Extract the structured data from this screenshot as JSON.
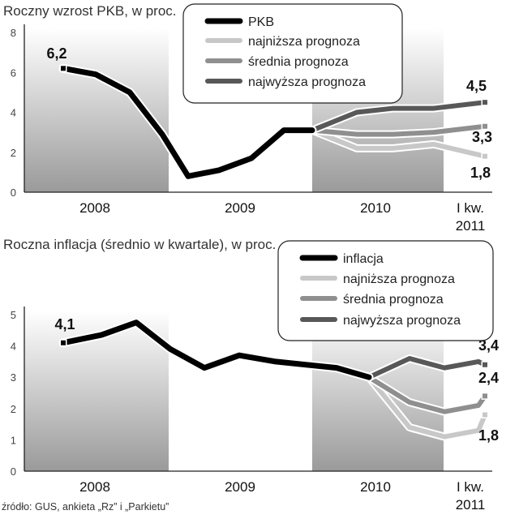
{
  "chart_data": [
    {
      "type": "line",
      "title": "Roczny wzrost PKB, w proc.",
      "xlabel": "",
      "ylabel": "",
      "ylim": [
        0,
        8
      ],
      "y_ticks": [
        0,
        2,
        4,
        6,
        8
      ],
      "x_labels": [
        "2008",
        "2009",
        "2010",
        "I kw.",
        "2011"
      ],
      "grid": false,
      "legend_position": "top-right",
      "quarters": [
        "2008 Q1",
        "2008 Q2",
        "2008 Q3",
        "2008 Q4",
        "2009 Q1",
        "2009 Q2",
        "2009 Q3",
        "2009 Q4",
        "2010 Q1",
        "2010 Q2",
        "2010 Q3",
        "2010 Q4",
        "2011 Q1"
      ],
      "series": [
        {
          "name": "PKB",
          "color": "#000000",
          "x": [
            "2008 Q1",
            "2008 Q2",
            "2008 Q3",
            "2008 Q4",
            "2009 Q1",
            "2009 Q2",
            "2009 Q3",
            "2009 Q4",
            "2010 Q1"
          ],
          "values": [
            6.2,
            5.9,
            5.0,
            2.9,
            0.8,
            1.1,
            1.7,
            3.1,
            3.1
          ]
        },
        {
          "name": "najniższa prognoza",
          "color": "#c8c8c8",
          "x": [
            "2010 Q1",
            "2010 Q2",
            "2010 Q3",
            "2010 Q4",
            "2011 Q1"
          ],
          "values": [
            3.1,
            2.2,
            2.2,
            2.4,
            1.8
          ]
        },
        {
          "name": "średnia prognoza",
          "color": "#8f8f8f",
          "x": [
            "2010 Q1",
            "2010 Q2",
            "2010 Q3",
            "2010 Q4",
            "2011 Q1"
          ],
          "values": [
            3.1,
            2.9,
            2.9,
            3.0,
            3.3
          ]
        },
        {
          "name": "najwyższa prognoza",
          "color": "#585858",
          "x": [
            "2010 Q1",
            "2010 Q2",
            "2010 Q3",
            "2010 Q4",
            "2011 Q1"
          ],
          "values": [
            3.1,
            4.0,
            4.2,
            4.2,
            4.5
          ]
        }
      ],
      "data_labels": [
        "6,2",
        "4,5",
        "3,3",
        "1,8"
      ]
    },
    {
      "type": "line",
      "title": "Roczna inflacja (średnio w kwartale), w proc.",
      "xlabel": "",
      "ylabel": "",
      "ylim": [
        0,
        5
      ],
      "y_ticks": [
        0,
        1,
        2,
        3,
        4,
        5
      ],
      "x_labels": [
        "2008",
        "2009",
        "2010",
        "I kw.",
        "2011"
      ],
      "grid": false,
      "legend_position": "top-right",
      "quarters": [
        "2008 Q1",
        "2008 Q2",
        "2008 Q3",
        "2008 Q4",
        "2009 Q1",
        "2009 Q2",
        "2009 Q3",
        "2009 Q4",
        "2010 Q1",
        "2010 Q2",
        "2010 Q3",
        "2010 Q4",
        "2011 Q1"
      ],
      "series": [
        {
          "name": "inflacja",
          "color": "#000000",
          "x": [
            "2008 Q1",
            "2008 Q2",
            "2008 Q3",
            "2008 Q4",
            "2009 Q1",
            "2009 Q2",
            "2009 Q3",
            "2009 Q4",
            "2010 Q1"
          ],
          "values": [
            4.1,
            4.35,
            4.75,
            3.9,
            3.3,
            3.7,
            3.5,
            3.3,
            3.0
          ]
        },
        {
          "name": "najniższa prognoza",
          "color": "#c8c8c8",
          "x": [
            "2010 Q1",
            "2010 Q2",
            "2010 Q3",
            "2010 Q4",
            "2011 Q1"
          ],
          "values": [
            3.0,
            1.4,
            1.1,
            1.3,
            1.8
          ]
        },
        {
          "name": "średnia prognoza",
          "color": "#8f8f8f",
          "x": [
            "2010 Q1",
            "2010 Q2",
            "2010 Q3",
            "2010 Q4",
            "2011 Q1"
          ],
          "values": [
            3.0,
            2.2,
            1.9,
            2.1,
            2.4
          ]
        },
        {
          "name": "najwyższa prognoza",
          "color": "#585858",
          "x": [
            "2010 Q1",
            "2010 Q2",
            "2010 Q3",
            "2010 Q4",
            "2011 Q1"
          ],
          "values": [
            3.0,
            3.6,
            3.3,
            3.5,
            3.4
          ]
        }
      ],
      "data_labels": [
        "4,1",
        "3,4",
        "2,4",
        "1,8"
      ]
    }
  ],
  "source_note": "źródło: GUS, ankieta „Rz” i „Parkietu”"
}
